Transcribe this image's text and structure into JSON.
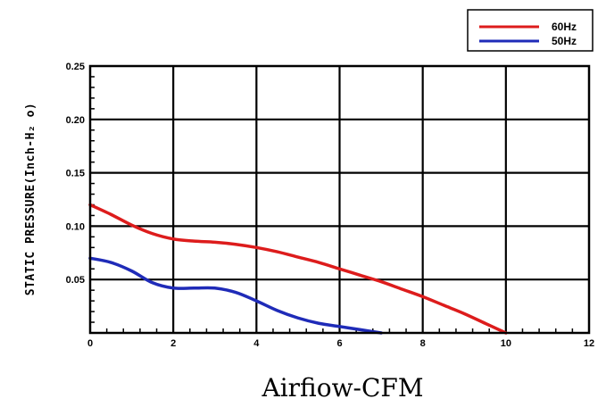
{
  "chart_data": {
    "type": "line",
    "xlabel": "Airfiow-CFM",
    "ylabel": "STATIC PRESSURE(Inch-H₂ o)",
    "xlim": [
      0,
      12
    ],
    "ylim": [
      0,
      0.25
    ],
    "x_ticks": [
      "0",
      "2",
      "4",
      "6",
      "8",
      "10",
      "12"
    ],
    "y_ticks": [
      "0.05",
      "0.10",
      "0.15",
      "0.20",
      "0.25"
    ],
    "grid": true,
    "legend_position": "top-right",
    "series": [
      {
        "name": "60Hz",
        "color": "#dd1c1c",
        "x": [
          0,
          0.5,
          1,
          1.5,
          2,
          2.5,
          3,
          3.5,
          4,
          4.5,
          5,
          5.5,
          6,
          6.5,
          7,
          7.5,
          8,
          8.5,
          9,
          9.5,
          10
        ],
        "y": [
          0.12,
          0.111,
          0.101,
          0.093,
          0.088,
          0.086,
          0.085,
          0.083,
          0.08,
          0.076,
          0.071,
          0.066,
          0.06,
          0.054,
          0.048,
          0.041,
          0.034,
          0.026,
          0.018,
          0.009,
          0.0
        ]
      },
      {
        "name": "50Hz",
        "color": "#1f2bb8",
        "x": [
          0,
          0.5,
          1,
          1.5,
          2,
          2.5,
          3,
          3.5,
          4,
          4.5,
          5,
          5.5,
          6,
          6.5,
          7
        ],
        "y": [
          0.07,
          0.066,
          0.058,
          0.047,
          0.042,
          0.042,
          0.042,
          0.038,
          0.03,
          0.021,
          0.014,
          0.009,
          0.006,
          0.003,
          0.0
        ]
      }
    ]
  }
}
